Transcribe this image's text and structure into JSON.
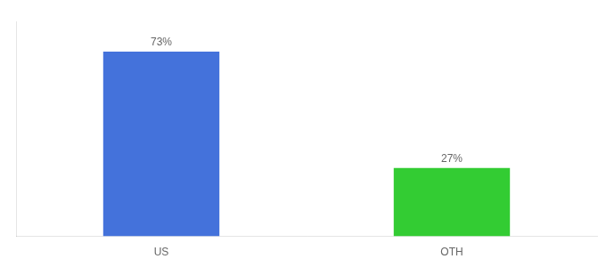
{
  "chart_data": {
    "type": "bar",
    "categories": [
      "US",
      "OTH"
    ],
    "values": [
      73,
      27
    ],
    "colors": [
      "#4472db",
      "#33cc33"
    ],
    "ylim": [
      0,
      85
    ],
    "yticks": [],
    "grid": false,
    "data_labels": true,
    "value_labels": [
      "73%",
      "27%"
    ],
    "tick_labels": "x"
  }
}
